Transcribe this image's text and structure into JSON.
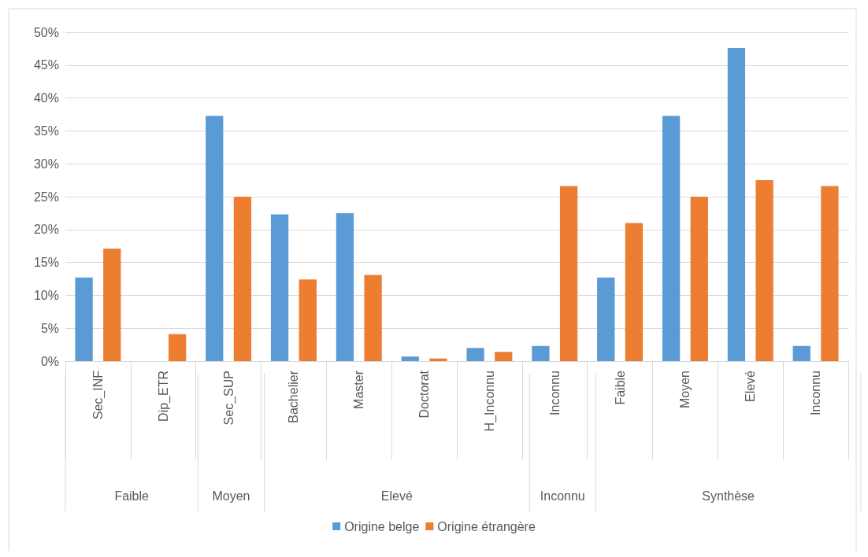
{
  "chart_data": {
    "type": "bar",
    "categories": [
      "Sec_INF",
      "Dip_ETR",
      "Sec_SUP",
      "Bachelier",
      "Master",
      "Doctorat",
      "H_Inconnu",
      "Inconnu",
      "Faible",
      "Moyen",
      "Elevé",
      "Inconnu"
    ],
    "series": [
      {
        "name": "Origine belge",
        "color": "#5b9bd5",
        "values": [
          12.7,
          null,
          37.3,
          22.3,
          22.5,
          0.7,
          2.0,
          2.3,
          12.7,
          37.3,
          47.6,
          2.3
        ]
      },
      {
        "name": "Origine étrangère",
        "color": "#ed7d31",
        "values": [
          17.1,
          4.1,
          25.0,
          12.4,
          13.1,
          0.4,
          1.4,
          26.6,
          21.0,
          25.0,
          27.5,
          26.6
        ]
      }
    ],
    "annotations": [
      "Faible",
      "Moyen",
      "Elevé",
      "Inconnu",
      "Synthèse"
    ],
    "ylim": [
      0,
      50
    ],
    "yticks": [
      {
        "value": 0,
        "label": "0%"
      },
      {
        "value": 5,
        "label": "5%"
      },
      {
        "value": 10,
        "label": "10%"
      },
      {
        "value": 15,
        "label": "15%"
      },
      {
        "value": 20,
        "label": "20%"
      },
      {
        "value": 25,
        "label": "25%"
      },
      {
        "value": 30,
        "label": "30%"
      },
      {
        "value": 35,
        "label": "35%"
      },
      {
        "value": 40,
        "label": "40%"
      },
      {
        "value": 45,
        "label": "45%"
      },
      {
        "value": 50,
        "label": "50%"
      }
    ],
    "grid": "y",
    "legend": "bottom"
  }
}
